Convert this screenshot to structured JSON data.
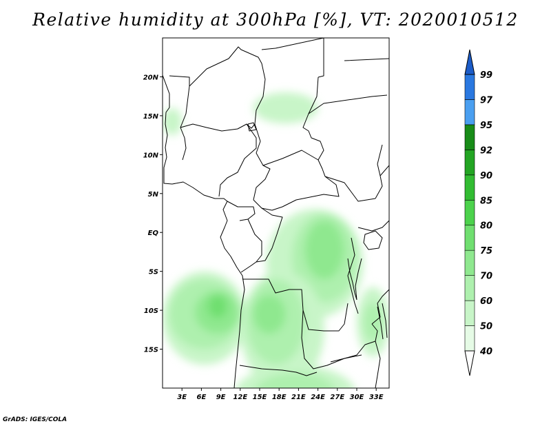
{
  "title": "Relative humidity at 300hPa [%], VT: 2020010512",
  "credit": "GrADS: IGES/COLA",
  "map": {
    "projection": "lat-lon",
    "lon_range": [
      0,
      35
    ],
    "lat_range": [
      -20,
      25
    ],
    "x_ticks": [
      {
        "lon": 3,
        "label": "3E"
      },
      {
        "lon": 6,
        "label": "6E"
      },
      {
        "lon": 9,
        "label": "9E"
      },
      {
        "lon": 12,
        "label": "12E"
      },
      {
        "lon": 15,
        "label": "15E"
      },
      {
        "lon": 18,
        "label": "18E"
      },
      {
        "lon": 21,
        "label": "21E"
      },
      {
        "lon": 24,
        "label": "24E"
      },
      {
        "lon": 27,
        "label": "27E"
      },
      {
        "lon": 30,
        "label": "30E"
      },
      {
        "lon": 33,
        "label": "33E"
      }
    ],
    "y_ticks": [
      {
        "lat": 20,
        "label": "20N"
      },
      {
        "lat": 15,
        "label": "15N"
      },
      {
        "lat": 10,
        "label": "10N"
      },
      {
        "lat": 5,
        "label": "5N"
      },
      {
        "lat": 0,
        "label": "EQ"
      },
      {
        "lat": -5,
        "label": "5S"
      },
      {
        "lat": -10,
        "label": "10S"
      },
      {
        "lat": -15,
        "label": "15S"
      }
    ]
  },
  "colorbar": {
    "levels": [
      "40",
      "50",
      "60",
      "70",
      "75",
      "80",
      "85",
      "90",
      "92",
      "95",
      "97",
      "99"
    ],
    "colors": [
      "#ffffff",
      "#e6fbe6",
      "#c8f5c8",
      "#aef0ae",
      "#8fe88f",
      "#70df70",
      "#4cd24c",
      "#32bc32",
      "#23a523",
      "#188c18",
      "#4a9ff0",
      "#2a78e0",
      "#1c5cc8"
    ]
  },
  "humidity_regions": [
    {
      "level": "50",
      "lon": [
        0,
        3
      ],
      "lat": [
        12.5,
        16
      ]
    },
    {
      "level": "50",
      "lon": [
        14,
        24
      ],
      "lat": [
        14,
        18
      ]
    },
    {
      "level": "50",
      "lon": [
        0,
        13
      ],
      "lat": [
        -17,
        -5
      ]
    },
    {
      "level": "60",
      "lon": [
        1,
        12
      ],
      "lat": [
        -15,
        -6
      ]
    },
    {
      "level": "70",
      "lon": [
        5,
        12
      ],
      "lat": [
        -13,
        -7.5
      ]
    },
    {
      "level": "75",
      "lon": [
        7,
        10
      ],
      "lat": [
        -11,
        -8
      ]
    },
    {
      "level": "50",
      "lon": [
        16,
        31
      ],
      "lat": [
        -11,
        3
      ]
    },
    {
      "level": "60",
      "lon": [
        20,
        30
      ],
      "lat": [
        -9,
        2.5
      ]
    },
    {
      "level": "70",
      "lon": [
        22,
        28
      ],
      "lat": [
        -6,
        1.5
      ]
    },
    {
      "level": "50",
      "lon": [
        12,
        25
      ],
      "lat": [
        -20,
        -5
      ]
    },
    {
      "level": "60",
      "lon": [
        13,
        22
      ],
      "lat": [
        -17,
        -6
      ]
    },
    {
      "level": "70",
      "lon": [
        14,
        19
      ],
      "lat": [
        -13,
        -8
      ]
    },
    {
      "level": "50",
      "lon": [
        11,
        30
      ],
      "lat": [
        -25,
        -17
      ]
    },
    {
      "level": "60",
      "lon": [
        14,
        27
      ],
      "lat": [
        -24,
        -18
      ]
    },
    {
      "level": "50",
      "lon": [
        30,
        35
      ],
      "lat": [
        -16,
        -7
      ]
    },
    {
      "level": "60",
      "lon": [
        31,
        34
      ],
      "lat": [
        -14,
        -9
      ]
    }
  ]
}
